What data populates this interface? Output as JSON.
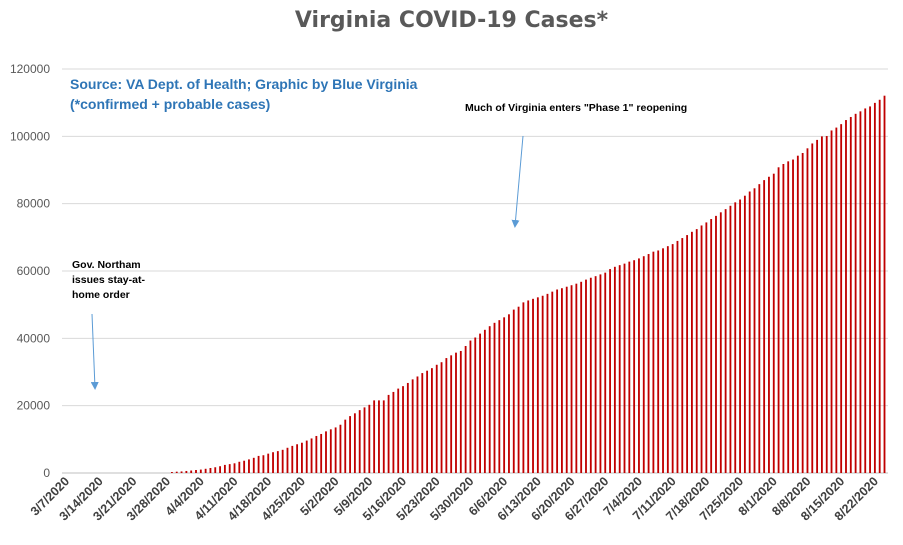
{
  "chart_data": {
    "type": "bar",
    "title": "Virginia COVID-19 Cases*",
    "subtitle_lines": [
      "Source: VA Dept. of Health; Graphic by Blue Virginia",
      "(*confirmed + probable cases)"
    ],
    "xlabel": "",
    "ylabel": "",
    "ylim": [
      0,
      120000
    ],
    "y_ticks": [
      "0",
      "20000",
      "40000",
      "60000",
      "80000",
      "100000",
      "120000"
    ],
    "x_tick_labels": [
      "3/7/2020",
      "3/14/2020",
      "3/21/2020",
      "3/28/2020",
      "4/4/2020",
      "4/11/2020",
      "4/18/2020",
      "4/25/2020",
      "5/2/2020",
      "5/9/2020",
      "5/16/2020",
      "5/23/2020",
      "5/30/2020",
      "6/6/2020",
      "6/13/2020",
      "6/20/2020",
      "6/27/2020",
      "7/4/2020",
      "7/11/2020",
      "7/18/2020",
      "7/25/2020",
      "8/1/2020",
      "8/8/2020",
      "8/15/2020",
      "8/22/2020"
    ],
    "x_start": "3/7/2020",
    "x_end": "8/22/2020",
    "bar_color": "#c00000",
    "grid": true,
    "annotations": [
      {
        "text": "Gov. Northam issues stay-at-home order",
        "date": "3/30/2020"
      },
      {
        "text": "Much of Virginia enters \"Phase 1\" reopening",
        "date": "5/15/2020"
      }
    ],
    "values": [
      0,
      0,
      0,
      0,
      0,
      0,
      0,
      0,
      0,
      0,
      0,
      0,
      0,
      0,
      0,
      0,
      0,
      0,
      0,
      0,
      0,
      0,
      290,
      391,
      460,
      604,
      739,
      890,
      1020,
      1250,
      1484,
      1706,
      2012,
      2407,
      2637,
      2878,
      3333,
      3645,
      4042,
      4509,
      5077,
      5274,
      5747,
      6171,
      6500,
      6889,
      7491,
      8053,
      8537,
      8990,
      9630,
      10266,
      10998,
      11594,
      12366,
      12970,
      13535,
      14339,
      15846,
      16901,
      17731,
      18671,
      19492,
      20256,
      21570,
      21570,
      21570,
      23196,
      24081,
      25070,
      25800,
      26746,
      27813,
      28672,
      29683,
      30388,
      31140,
      32145,
      32908,
      34137,
      34950,
      35749,
      36244,
      37727,
      39342,
      40249,
      41401,
      42533,
      43611,
      44607,
      45398,
      46239,
      47138,
      48532,
      49397,
      50681,
      51251,
      51738,
      52177,
      52647,
      53211,
      53869,
      54506,
      54886,
      55331,
      55775,
      56238,
      56793,
      57443,
      57994,
      58465,
      58994,
      59514,
      60570,
      61247,
      61736,
      62189,
      62787,
      63203,
      63735,
      64393,
      65042,
      65748,
      66102,
      66740,
      67375,
      67988,
      68931,
      69782,
      70670,
      71642,
      72443,
      73527,
      74431,
      75433,
      76373,
      77430,
      78375,
      79371,
      80393,
      81237,
      82364,
      83609,
      84567,
      85801,
      86994,
      87993,
      88904,
      90801,
      91782,
      92571,
      93106,
      94251,
      95049,
      96442,
      97882,
      98941,
      99986,
      100086,
      101745,
      102601,
      103622,
      104838,
      105750,
      106687,
      107421,
      108282,
      108882,
      109941,
      110860,
      112072
    ]
  }
}
